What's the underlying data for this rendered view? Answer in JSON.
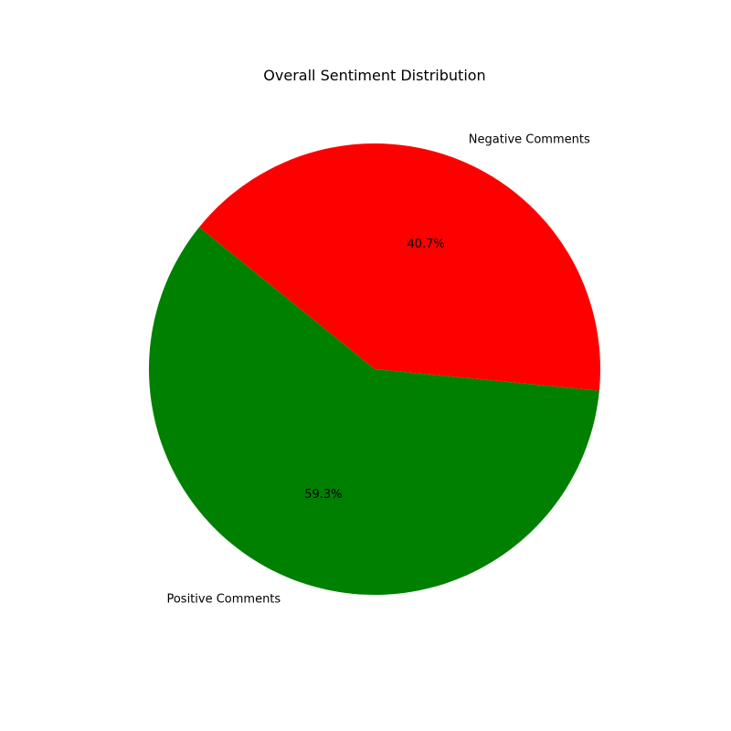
{
  "chart_data": {
    "type": "pie",
    "title": "Overall Sentiment Distribution",
    "slices": [
      {
        "label": "Negative Comments",
        "value": 40.7,
        "pct_label": "40.7%",
        "color": "#ff0000"
      },
      {
        "label": "Positive Comments",
        "value": 59.3,
        "pct_label": "59.3%",
        "color": "#008000"
      }
    ],
    "legend": false
  }
}
